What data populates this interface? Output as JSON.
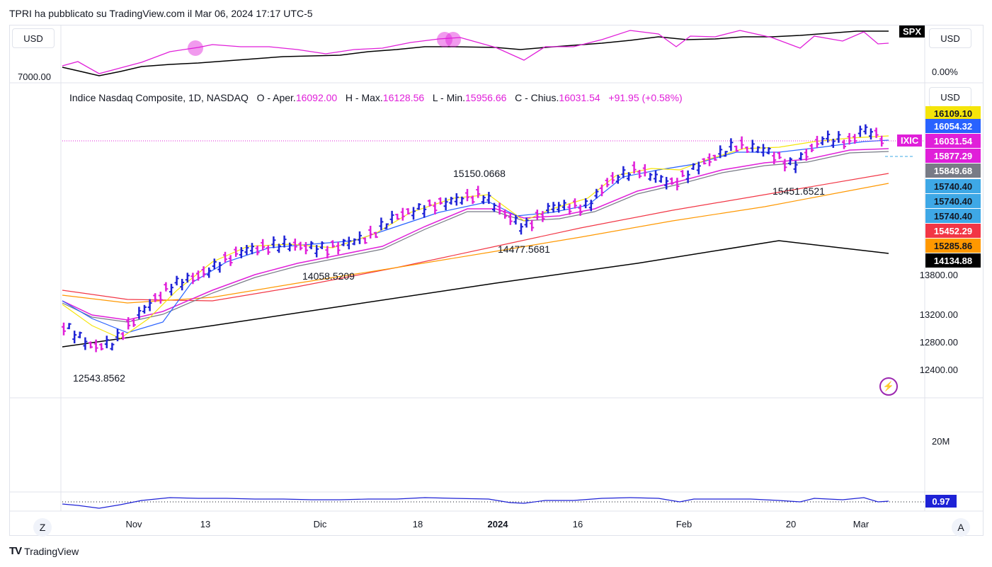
{
  "header": {
    "text": "TPRI ha pubblicato su TradingView.com il Mar 06, 2024 17:17 UTC-5"
  },
  "spx_pane": {
    "currency_left": "USD",
    "currency_right": "USD",
    "symbol_badge": "SPX",
    "left_value": "7000.00",
    "right_value": "0.00%"
  },
  "main_pane": {
    "currency": "USD",
    "legend": {
      "name": "Indice Nasdaq Composite, 1D, NASDAQ",
      "o_label": "O - Aper.",
      "o": "16092.00",
      "h_label": "H - Max.",
      "h": "16128.56",
      "l_label": "L - Min.",
      "l": "15956.66",
      "c_label": "C - Chius.",
      "c": "16031.54",
      "change": "+91.95 (+0.58%)"
    },
    "annotations": [
      "15150.0668",
      "14058.5209",
      "14477.5681",
      "15451.6521",
      "12543.8562"
    ],
    "symbol_badge": "IXIC",
    "price_labels": [
      {
        "text": "16109.10",
        "color": "#f5e50a",
        "fg": "#131722"
      },
      {
        "text": "16054.32",
        "color": "#2962ff",
        "fg": "#ffffff"
      },
      {
        "text": "16031.54",
        "color": "#e01fd9",
        "fg": "#ffffff"
      },
      {
        "text": "15877.29",
        "color": "#e01fd9",
        "fg": "#ffffff"
      },
      {
        "text": "15849.68",
        "color": "#787b86",
        "fg": "#ffffff"
      },
      {
        "text": "15740.40",
        "color": "#3ea8e6",
        "fg": "#131722"
      },
      {
        "text": "15740.40",
        "color": "#3ea8e6",
        "fg": "#131722"
      },
      {
        "text": "15740.40",
        "color": "#3ea8e6",
        "fg": "#131722"
      },
      {
        "text": "15452.29",
        "color": "#f23645",
        "fg": "#ffffff"
      },
      {
        "text": "15285.86",
        "color": "#ff9800",
        "fg": "#131722"
      },
      {
        "text": "14134.88",
        "color": "#000000",
        "fg": "#ffffff"
      }
    ],
    "y_ticks": [
      "13800.00",
      "13200.00",
      "12800.00",
      "12400.00"
    ]
  },
  "volume_pane": {
    "y_tick": "20M"
  },
  "indicator_pane": {
    "value_label": "0.97",
    "value_color": "#1e22d6"
  },
  "x_axis": {
    "labels": [
      "Nov",
      "13",
      "Dic",
      "18",
      "2024",
      "16",
      "Feb",
      "20",
      "Mar"
    ]
  },
  "buttons": {
    "timezone": "Z",
    "auto": "A"
  },
  "footer": {
    "brand": "TradingView",
    "logo_text": "TV"
  },
  "colors": {
    "up": "#1e22d6",
    "down": "#e01fd9",
    "spx_line": "#000000",
    "ratio_line": "#e01fd9"
  }
}
